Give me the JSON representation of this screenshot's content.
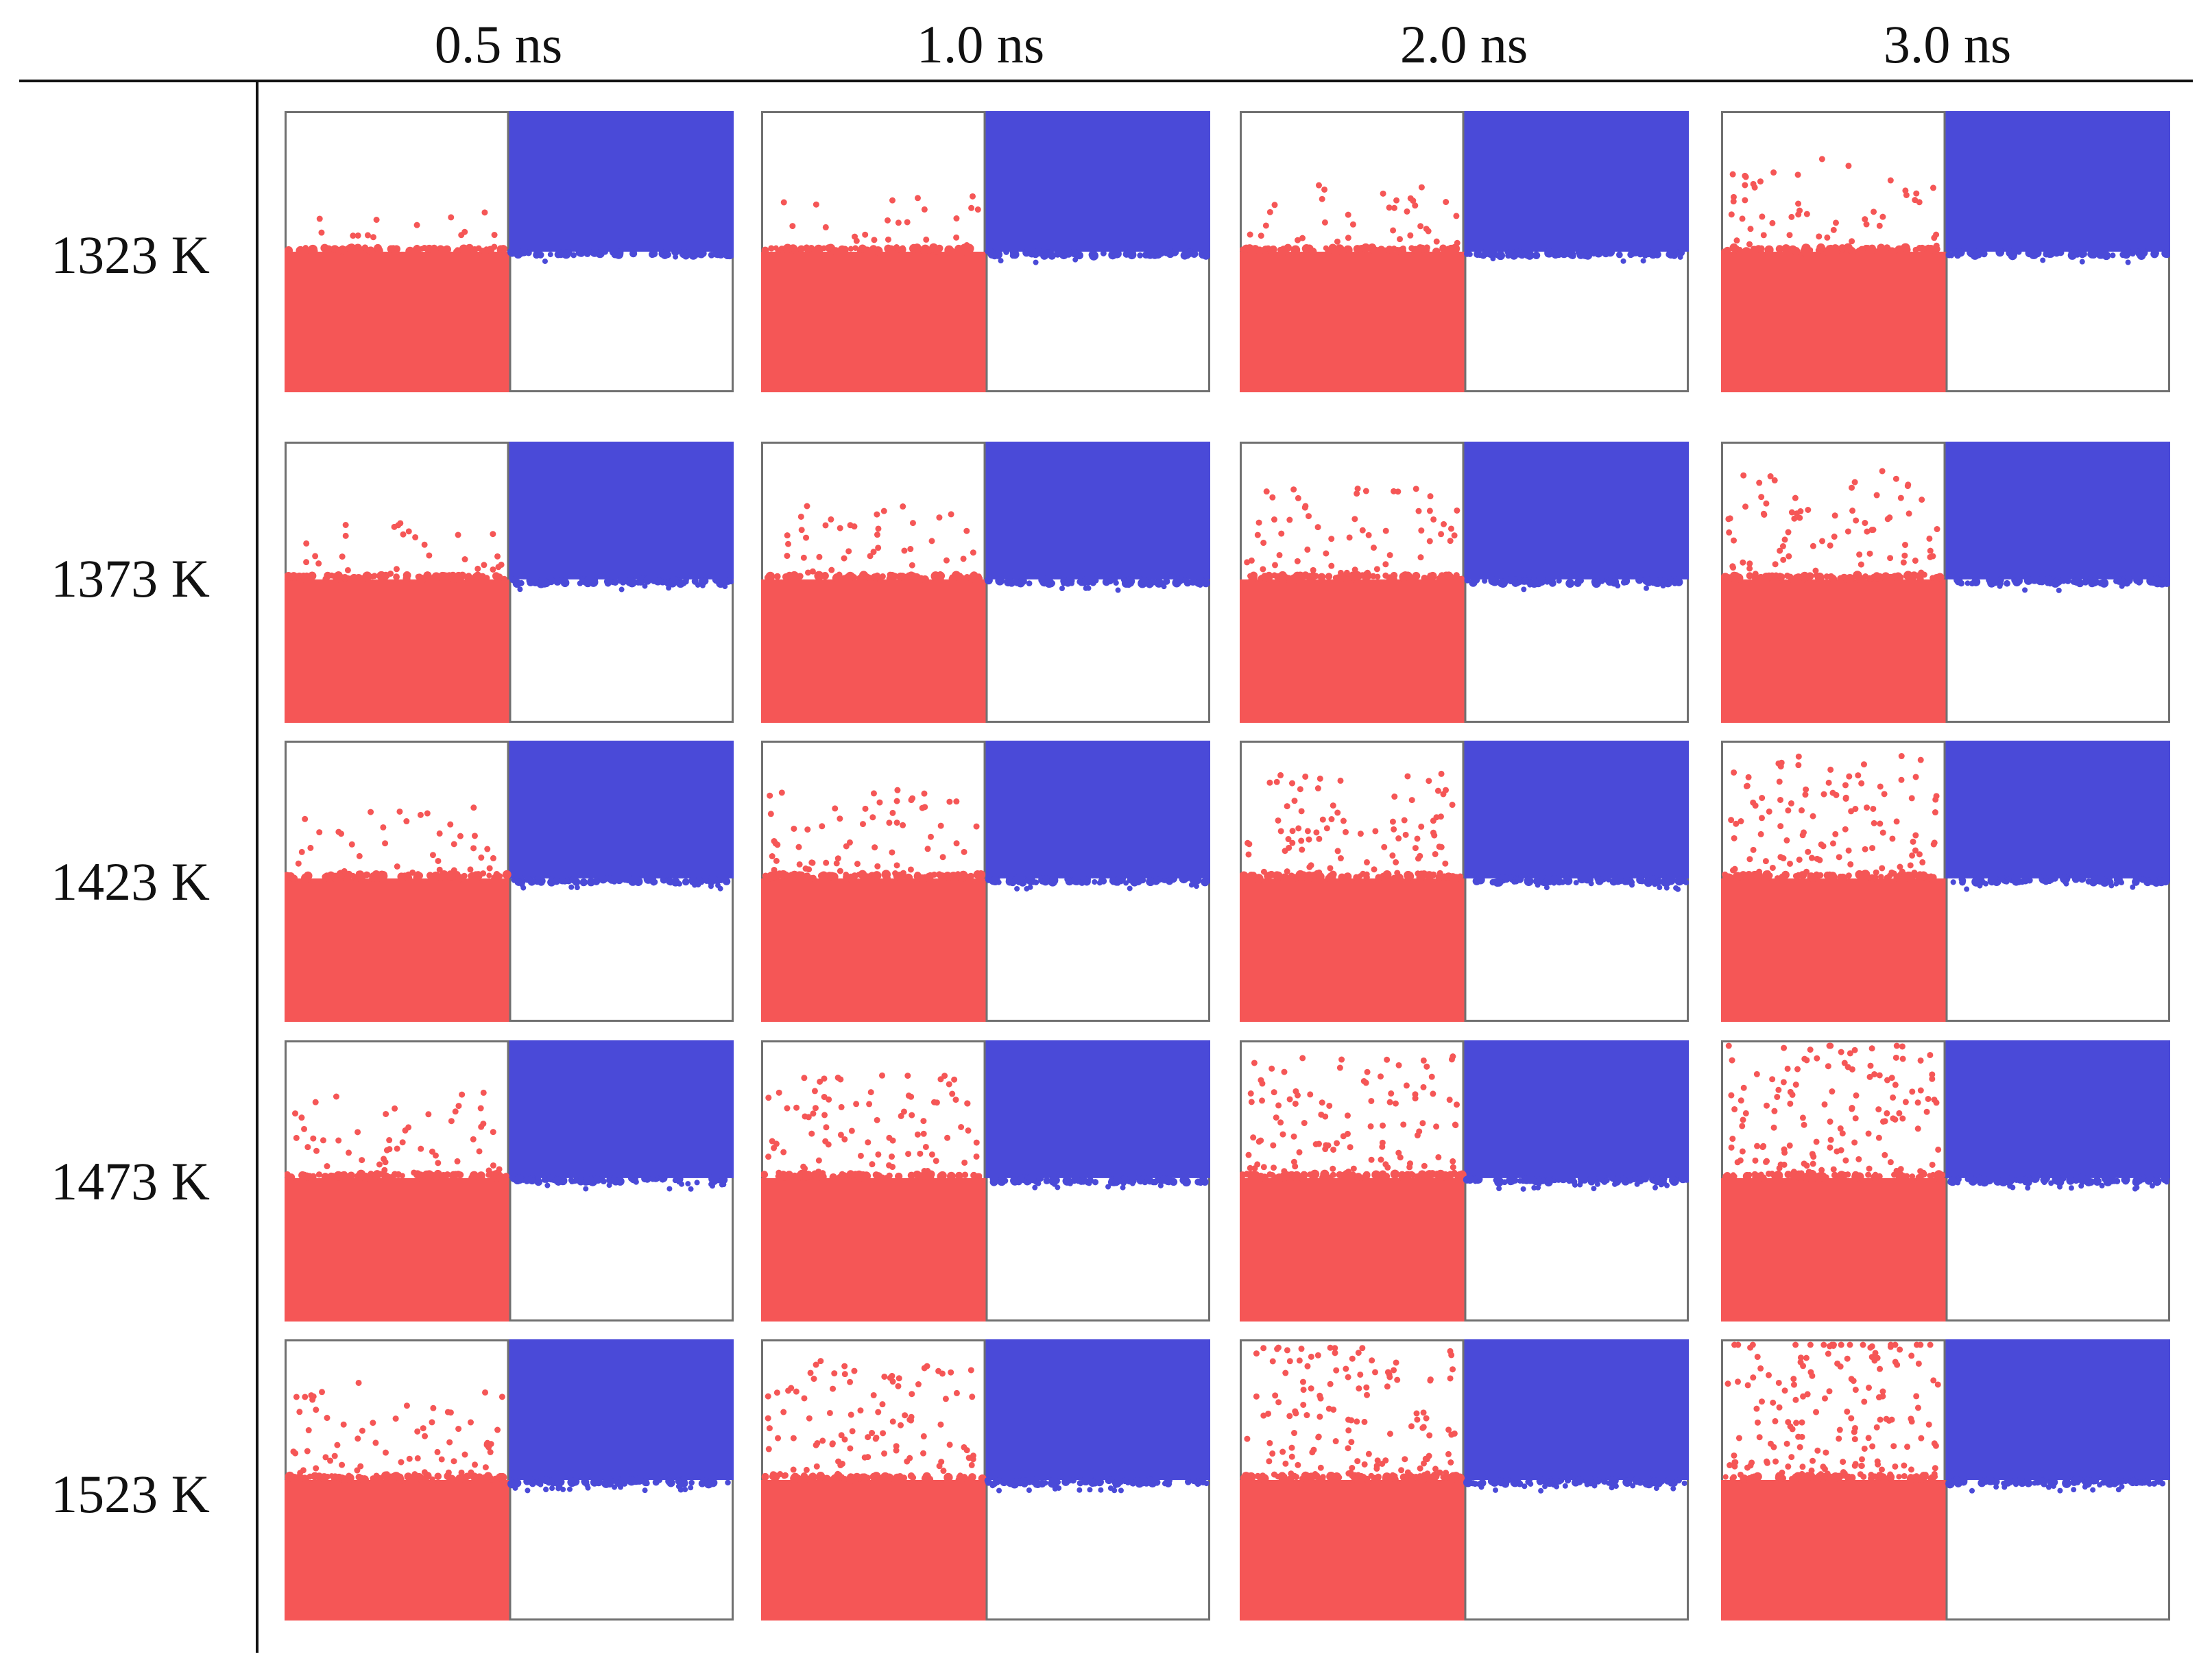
{
  "colors": {
    "left_phase": "#f55656",
    "right_phase": "#4a4ad8",
    "frame": "#707070",
    "text": "#111111"
  },
  "columns": [
    "0.5 ns",
    "1.0 ns",
    "2.0 ns",
    "3.0 ns"
  ],
  "rows": [
    "1323 K",
    "1373 K",
    "1423 K",
    "1473 K",
    "1523 K"
  ]
}
